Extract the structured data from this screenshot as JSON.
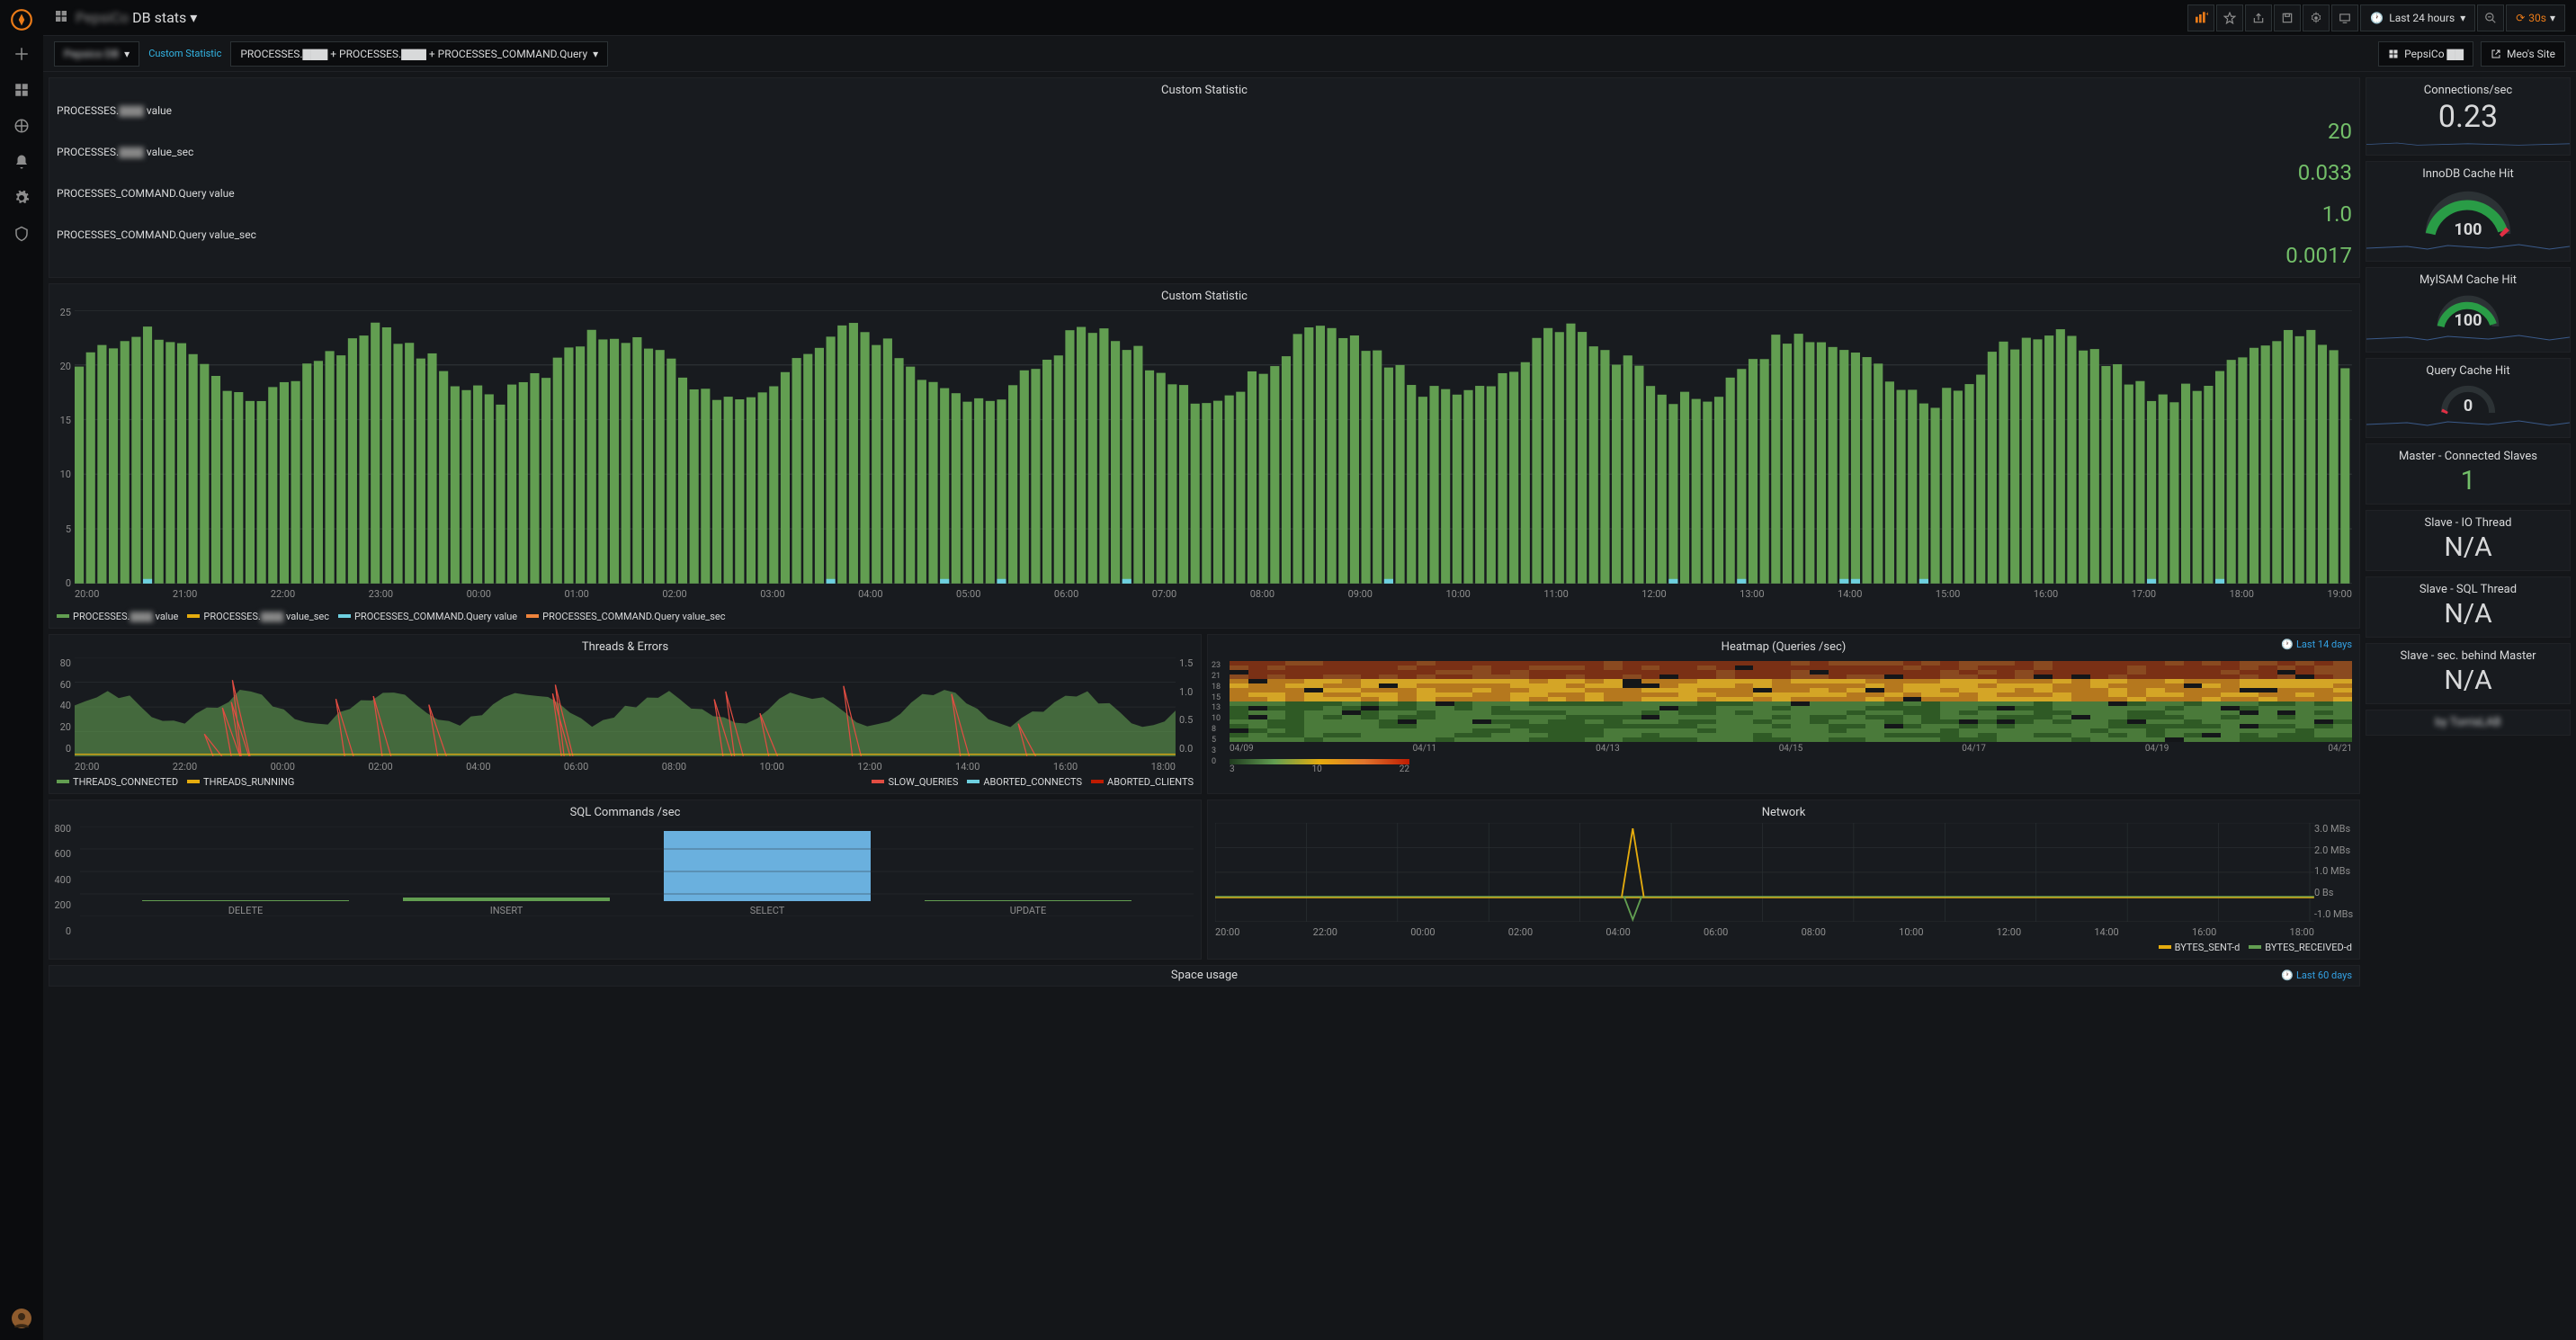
{
  "topbar": {
    "title_prefix": "PepsiCo",
    "title": "DB stats",
    "time_label": "Last 24 hours",
    "refresh": "30s"
  },
  "varrow": {
    "selector1": "Pepsico DB",
    "stat_label": "Custom Statistic",
    "query_text": "PROCESSES.▇▇▇ + PROCESSES.▇▇▇ + PROCESSES_COMMAND.Query",
    "link1": "PepsiCo ▇▇",
    "link2": "Meo's Site"
  },
  "custom_stat": {
    "title": "Custom Statistic",
    "rows": [
      {
        "label_pre": "PROCESSES.",
        "label_blur": "▇▇▇",
        "label_post": " value",
        "value": "20",
        "fill": 0.85,
        "bars": 120
      },
      {
        "label_pre": "PROCESSES.",
        "label_blur": "▇▇▇",
        "label_post": " value_sec",
        "value": "0.033",
        "fill": 0.04,
        "bars": 120
      },
      {
        "label_pre": "PROCESSES_COMMAND.Query value",
        "label_blur": "",
        "label_post": "",
        "value": "1.0",
        "fill": 0.08,
        "bars": 120
      },
      {
        "label_pre": "PROCESSES_COMMAND.Query value_sec",
        "label_blur": "",
        "label_post": "",
        "value": "0.0017",
        "fill": 0.02,
        "bars": 120
      }
    ]
  },
  "custom_chart": {
    "title": "Custom Statistic",
    "type": "bar-timeseries",
    "ymax": 25,
    "ytick": 5,
    "bars": 200,
    "base": 20,
    "variation": 3,
    "color": "#629e51",
    "x_labels": [
      "20:00",
      "21:00",
      "22:00",
      "23:00",
      "00:00",
      "01:00",
      "02:00",
      "03:00",
      "04:00",
      "05:00",
      "06:00",
      "07:00",
      "08:00",
      "09:00",
      "10:00",
      "11:00",
      "12:00",
      "13:00",
      "14:00",
      "15:00",
      "16:00",
      "17:00",
      "18:00",
      "19:00"
    ],
    "legend": [
      {
        "label_pre": "PROCESSES.",
        "blur": "▇▇▇",
        "label_post": " value",
        "color": "#629e51"
      },
      {
        "label_pre": "PROCESSES.",
        "blur": "▇▇▇",
        "label_post": " value_sec",
        "color": "#e5ac0e"
      },
      {
        "label_pre": "PROCESSES_COMMAND.Query value",
        "blur": "",
        "label_post": "",
        "color": "#6ed0e0"
      },
      {
        "label_pre": "PROCESSES_COMMAND.Query value_sec",
        "blur": "",
        "label_post": "",
        "color": "#ef843c"
      }
    ]
  },
  "threads": {
    "title": "Threads & Errors",
    "ymax_l": 80,
    "ytick_l": 20,
    "ymax_r": 1.5,
    "ytick_r": 0.5,
    "x_labels": [
      "20:00",
      "22:00",
      "00:00",
      "02:00",
      "04:00",
      "06:00",
      "08:00",
      "10:00",
      "12:00",
      "14:00",
      "16:00",
      "18:00"
    ],
    "legend_l": [
      {
        "label": "THREADS_CONNECTED",
        "color": "#629e51"
      },
      {
        "label": "THREADS_RUNNING",
        "color": "#e5ac0e"
      }
    ],
    "legend_r": [
      {
        "label": "SLOW_QUERIES",
        "color": "#e24d42"
      },
      {
        "label": "ABORTED_CONNECTS",
        "color": "#6ed0e0"
      },
      {
        "label": "ABORTED_CLIENTS",
        "color": "#bf1b00"
      }
    ]
  },
  "heatmap": {
    "title": "Heatmap (Queries /sec)",
    "corner": "Last 14 days",
    "y_labels": [
      "23",
      "21",
      "18",
      "15",
      "13",
      "10",
      "8",
      "5",
      "3",
      "0"
    ],
    "x_labels": [
      "04/09",
      "04/11",
      "04/13",
      "04/15",
      "04/17",
      "04/19",
      "04/21"
    ],
    "grad_labels": [
      "3",
      "10",
      "22"
    ],
    "rows": 18,
    "cols": 60
  },
  "sql": {
    "title": "SQL Commands /sec",
    "ymax": 800,
    "ytick": 200,
    "bars": [
      {
        "label": "DELETE",
        "value": 5,
        "color": "#629e51"
      },
      {
        "label": "INSERT",
        "value": 35,
        "color": "#629e51"
      },
      {
        "label": "SELECT",
        "value": 620,
        "color": "#6ab0de"
      },
      {
        "label": "UPDATE",
        "value": 8,
        "color": "#629e51"
      }
    ]
  },
  "network": {
    "title": "Network",
    "y_labels": [
      "3.0 MBs",
      "2.0 MBs",
      "1.0 MBs",
      "0 Bs",
      "-1.0 MBs"
    ],
    "x_labels": [
      "20:00",
      "22:00",
      "00:00",
      "02:00",
      "04:00",
      "06:00",
      "08:00",
      "10:00",
      "12:00",
      "14:00",
      "16:00",
      "18:00"
    ],
    "spike_x": 0.38,
    "legend": [
      {
        "label": "BYTES_SENT-d",
        "color": "#e5ac0e"
      },
      {
        "label": "BYTES_RECEIVED-d",
        "color": "#629e51"
      }
    ]
  },
  "space": {
    "title": "Space usage",
    "corner": "Last 60 days"
  },
  "right": {
    "conn": {
      "title": "Connections/sec",
      "value": "0.23",
      "color": "#d8d9da"
    },
    "innodb": {
      "title": "InnoDB Cache Hit",
      "value": "100",
      "arc_color": "#299c46",
      "arc_end": "#e02f44"
    },
    "myisam": {
      "title": "MyISAM Cache Hit",
      "value": "100",
      "arc_color": "#299c46"
    },
    "qcache": {
      "title": "Query Cache Hit",
      "value": "0",
      "arc_color": "#e02f44"
    },
    "master": {
      "title": "Master - Connected Slaves",
      "value": "1",
      "color": "#73bf69"
    },
    "slaveio": {
      "title": "Slave - IO Thread",
      "value": "N/A",
      "color": "#d8d9da"
    },
    "slavesql": {
      "title": "Slave - SQL Thread",
      "value": "N/A",
      "color": "#d8d9da"
    },
    "slavesec": {
      "title": "Slave - sec. behind Master",
      "value": "N/A",
      "color": "#d8d9da"
    },
    "footer": {
      "title": "by TorrisLAB"
    }
  },
  "colors": {
    "bg": "#141619",
    "panel": "#181b1f",
    "text": "#d8d9da",
    "muted": "#8e8e8e",
    "green": "#629e51",
    "green_brt": "#73bf69",
    "yellow": "#e5ac0e",
    "cyan": "#6ed0e0",
    "orange": "#ef843c",
    "red": "#e24d42",
    "blue": "#6ab0de"
  }
}
